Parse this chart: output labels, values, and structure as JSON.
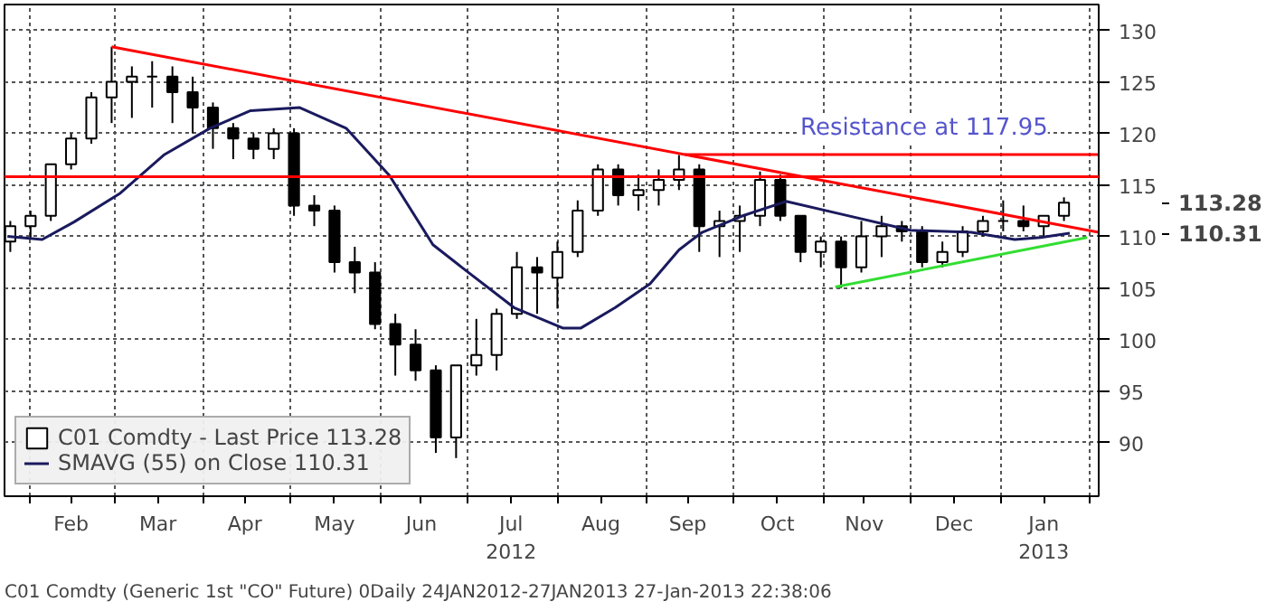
{
  "chart_data": {
    "type": "candlestick",
    "legend": "bottom left",
    "grid": true,
    "xlim": [
      "2012-01-23",
      "2013-02-04"
    ],
    "ylim": [
      84.8,
      132.5
    ],
    "yticks": [
      90,
      95,
      100,
      105,
      110,
      115,
      120,
      125,
      130
    ],
    "xticks": [
      {
        "value": "2012-02-01",
        "label": null
      },
      {
        "value": "2012-03-01",
        "label": null
      },
      {
        "value": "2012-04-01",
        "label": null
      },
      {
        "value": "2012-05-01",
        "label": null
      },
      {
        "value": "2012-06-01",
        "label": null
      },
      {
        "value": "2012-07-01",
        "label": null
      },
      {
        "value": "2012-08-01",
        "label": null
      },
      {
        "value": "2012-09-01",
        "label": null
      },
      {
        "value": "2012-10-01",
        "label": null
      },
      {
        "value": "2012-11-01",
        "label": null
      },
      {
        "value": "2012-12-01",
        "label": null
      },
      {
        "value": "2013-01-01",
        "label": null
      },
      {
        "value": "2013-02-01",
        "label": null
      },
      {
        "value": "2012-02-15",
        "label": "Feb"
      },
      {
        "value": "2012-03-16",
        "label": "Mar"
      },
      {
        "value": "2012-04-15",
        "label": "Apr"
      },
      {
        "value": "2012-05-16",
        "label": "May"
      },
      {
        "value": "2012-06-15",
        "label": "Jun"
      },
      {
        "value": "2012-07-16",
        "label": "Jul\n2012"
      },
      {
        "value": "2012-08-16",
        "label": "Aug"
      },
      {
        "value": "2012-09-15",
        "label": "Sep"
      },
      {
        "value": "2012-10-16",
        "label": "Oct"
      },
      {
        "value": "2012-11-15",
        "label": "Nov"
      },
      {
        "value": "2012-12-16",
        "label": "Dec"
      },
      {
        "value": "2013-01-16",
        "label": "Jan\n2013"
      }
    ],
    "series": [
      {
        "name": "C01 Comdty - Last Price 113.28",
        "color": "#000000",
        "x": [
          "2012-01-25",
          "2012-02-01",
          "2012-02-08",
          "2012-02-15",
          "2012-02-22",
          "2012-02-29",
          "2012-03-07",
          "2012-03-14",
          "2012-03-21",
          "2012-03-28",
          "2012-04-04",
          "2012-04-11",
          "2012-04-18",
          "2012-04-25",
          "2012-05-02",
          "2012-05-09",
          "2012-05-16",
          "2012-05-23",
          "2012-05-30",
          "2012-06-06",
          "2012-06-13",
          "2012-06-20",
          "2012-06-27",
          "2012-07-04",
          "2012-07-11",
          "2012-07-18",
          "2012-07-25",
          "2012-08-01",
          "2012-08-08",
          "2012-08-15",
          "2012-08-22",
          "2012-08-29",
          "2012-09-05",
          "2012-09-12",
          "2012-09-19",
          "2012-09-26",
          "2012-10-03",
          "2012-10-10",
          "2012-10-17",
          "2012-10-24",
          "2012-10-31",
          "2012-11-07",
          "2012-11-14",
          "2012-11-21",
          "2012-11-28",
          "2012-12-05",
          "2012-12-12",
          "2012-12-19",
          "2012-12-26",
          "2013-01-02",
          "2013-01-09",
          "2013-01-16",
          "2013-01-23"
        ],
        "ohlc": [
          [
            109.5,
            111.5,
            108.5,
            111
          ],
          [
            111,
            112.5,
            109.8,
            112
          ],
          [
            112,
            117,
            111.5,
            117
          ],
          [
            117,
            120,
            116.5,
            119.5
          ],
          [
            119.5,
            124,
            119,
            123.5
          ],
          [
            123.5,
            128.4,
            121,
            125
          ],
          [
            125,
            126.5,
            121.5,
            125.5
          ],
          [
            125.5,
            127,
            122.5,
            125.5
          ],
          [
            125.5,
            126.5,
            121,
            124
          ],
          [
            124,
            125.5,
            120,
            122.5
          ],
          [
            122.5,
            123,
            118.5,
            120.5
          ],
          [
            120.5,
            121,
            117.5,
            119.5
          ],
          [
            119.5,
            120,
            117.5,
            118.5
          ],
          [
            118.5,
            120.5,
            117.5,
            120
          ],
          [
            120,
            120.5,
            112,
            113
          ],
          [
            113,
            114,
            111,
            112.5
          ],
          [
            112.5,
            113,
            106.5,
            107.5
          ],
          [
            107.5,
            109,
            104.5,
            106.5
          ],
          [
            106.5,
            107.5,
            101,
            101.5
          ],
          [
            101.5,
            102.5,
            96.5,
            99.5
          ],
          [
            99.5,
            101,
            96,
            97
          ],
          [
            97,
            97.5,
            89,
            90.5
          ],
          [
            90.5,
            97.5,
            88.5,
            97.5
          ],
          [
            97.5,
            102,
            96.5,
            98.5
          ],
          [
            98.5,
            103,
            97,
            102.5
          ],
          [
            102.5,
            108.5,
            102,
            107
          ],
          [
            107,
            108,
            102.5,
            106.5
          ],
          [
            106,
            109.5,
            103,
            108.5
          ],
          [
            108.5,
            113.5,
            108,
            112.5
          ],
          [
            112.5,
            117,
            112,
            116.5
          ],
          [
            116.5,
            117,
            113,
            114
          ],
          [
            114,
            116,
            112.5,
            114.5
          ],
          [
            114.5,
            116.5,
            113,
            115.5
          ],
          [
            115.5,
            117.9,
            114.5,
            116.5
          ],
          [
            116.5,
            117,
            108.5,
            111
          ],
          [
            111,
            112.5,
            108,
            111.5
          ],
          [
            111.5,
            113,
            108.5,
            112
          ],
          [
            112,
            116.3,
            111,
            115.5
          ],
          [
            115.5,
            116,
            111.5,
            112
          ],
          [
            112,
            112,
            107.5,
            108.5
          ],
          [
            108.5,
            110,
            107,
            109.5
          ],
          [
            109.5,
            110,
            105,
            107
          ],
          [
            107,
            111.5,
            106.5,
            110
          ],
          [
            110,
            112,
            108,
            111
          ],
          [
            111,
            111.5,
            109.5,
            110.5
          ],
          [
            110.5,
            111,
            107,
            107.5
          ],
          [
            107.5,
            109.5,
            107,
            108.5
          ],
          [
            108.5,
            111,
            108,
            110.5
          ],
          [
            110.5,
            112,
            110,
            111.5
          ],
          [
            111.5,
            113.5,
            110.5,
            111.5
          ],
          [
            111.5,
            113,
            110.5,
            111
          ],
          [
            111,
            112,
            110,
            112
          ],
          [
            112,
            113.8,
            111.5,
            113.28
          ]
        ]
      },
      {
        "name": "SMAVG (55) on Close 110.31",
        "type": "line",
        "color": "#1a1a5e",
        "x": [
          "2012-01-24",
          "2012-02-05",
          "2012-02-16",
          "2012-03-03",
          "2012-03-18",
          "2012-04-03",
          "2012-04-17",
          "2012-05-04",
          "2012-05-20",
          "2012-06-04",
          "2012-06-19",
          "2012-06-29",
          "2012-07-17",
          "2012-08-03",
          "2012-08-09",
          "2012-08-21",
          "2012-09-02",
          "2012-09-12",
          "2012-09-20",
          "2012-10-04",
          "2012-10-19",
          "2012-11-08",
          "2012-12-01",
          "2012-12-22",
          "2013-01-06",
          "2013-01-15",
          "2013-01-25"
        ],
        "values": [
          110,
          109.7,
          111.4,
          114.2,
          117.9,
          120.5,
          122.2,
          122.5,
          120.5,
          115.9,
          109.2,
          107,
          103.1,
          101.1,
          101.1,
          103.1,
          105.4,
          108.7,
          110.4,
          112,
          113.4,
          112.1,
          110.6,
          110.4,
          109.7,
          109.9,
          110.31
        ]
      },
      {
        "type": "line",
        "color": "#ff0000",
        "x": [
          "2012-02-29",
          "2013-02-04"
        ],
        "values": [
          128.4,
          110.4
        ]
      },
      {
        "type": "line",
        "color": "#ff0000",
        "x": [
          "2012-09-14",
          "2013-02-04"
        ],
        "values": [
          117.95,
          117.95
        ]
      },
      {
        "type": "line",
        "color": "#33dd33",
        "x": [
          "2012-11-05",
          "2013-01-31"
        ],
        "values": [
          105.1,
          109.9
        ]
      }
    ],
    "ref_lines": [
      {
        "axis": "y",
        "value": 115.8,
        "color": "#ff0000"
      }
    ],
    "annotations": [
      "Resistance at 117.95",
      "113.28",
      "110.31",
      "C01 Comdty (Generic 1st \"CO\" Future) 0Daily 24JAN2012-27JAN2013  27-Jan-2013 22:38:06"
    ]
  }
}
